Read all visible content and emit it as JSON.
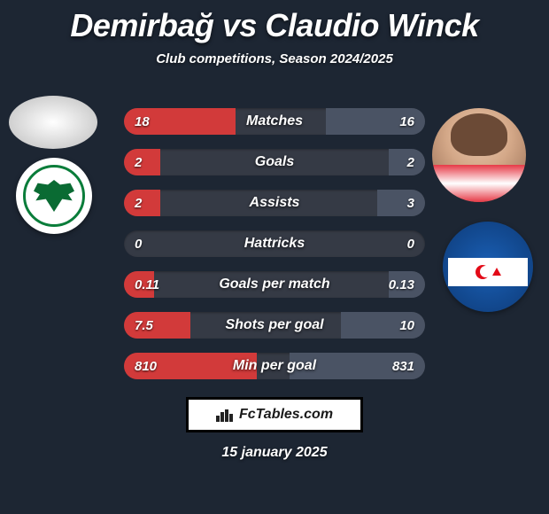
{
  "title": "Demirbağ vs Claudio Winck",
  "subtitle": "Club competitions, Season 2024/2025",
  "date": "15 january 2025",
  "watermark": "FcTables.com",
  "colors": {
    "background": "#1d2633",
    "pill_bg": "#353a45",
    "fill_left": "#d23a3a",
    "fill_right": "#4a5364",
    "text": "#ffffff"
  },
  "stats": [
    {
      "label": "Matches",
      "left_val": "18",
      "right_val": "16",
      "left_pct": 37,
      "right_pct": 33
    },
    {
      "label": "Goals",
      "left_val": "2",
      "right_val": "2",
      "left_pct": 12,
      "right_pct": 12
    },
    {
      "label": "Assists",
      "left_val": "2",
      "right_val": "3",
      "left_pct": 12,
      "right_pct": 16
    },
    {
      "label": "Hattricks",
      "left_val": "0",
      "right_val": "0",
      "left_pct": 0,
      "right_pct": 0
    },
    {
      "label": "Goals per match",
      "left_val": "0.11",
      "right_val": "0.13",
      "left_pct": 10,
      "right_pct": 12
    },
    {
      "label": "Shots per goal",
      "left_val": "7.5",
      "right_val": "10",
      "left_pct": 22,
      "right_pct": 28
    },
    {
      "label": "Min per goal",
      "left_val": "810",
      "right_val": "831",
      "left_pct": 44,
      "right_pct": 45
    }
  ],
  "players": {
    "left": {
      "name": "Demirbağ",
      "club": "Konyaspor"
    },
    "right": {
      "name": "Claudio Winck",
      "club": "Kasımpaşa"
    }
  }
}
